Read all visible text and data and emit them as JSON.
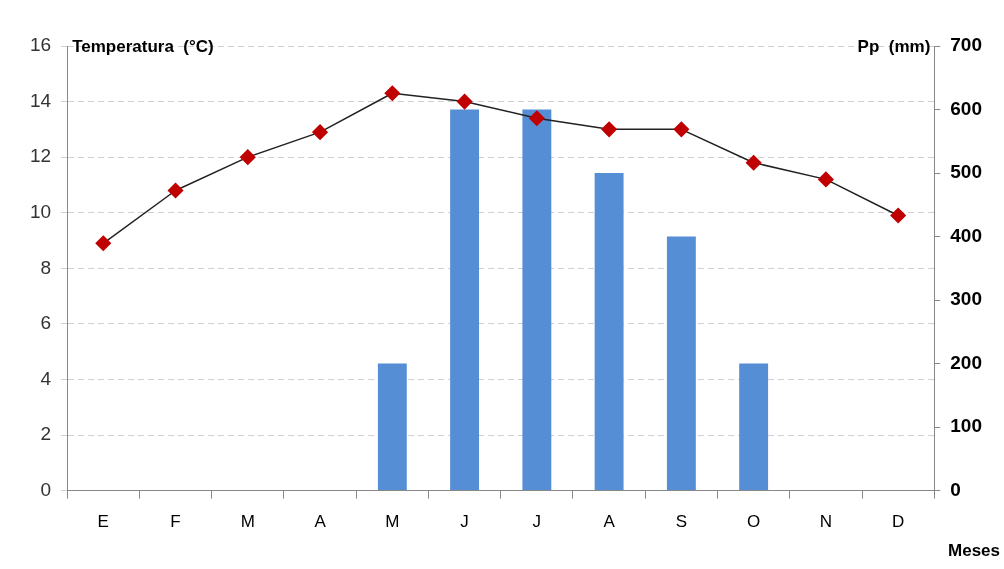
{
  "chart_data": {
    "type": "bar",
    "ylabel": "Temperatura  (°C)",
    "y2label": "Pp  (mm)",
    "xlabel": "Meses",
    "categories": [
      "E",
      "F",
      "M",
      "A",
      "M",
      "J",
      "J",
      "A",
      "S",
      "O",
      "N",
      "D"
    ],
    "series": [
      {
        "axis": "y2",
        "color": "#558ed5",
        "values": [
          0,
          0,
          0,
          0,
          200,
          600,
          600,
          500,
          400,
          200,
          0,
          0
        ]
      },
      {
        "type": "line",
        "axis": "y",
        "color": "#c00000",
        "marker": "diamond",
        "line_style": "solid",
        "values": [
          8.9,
          10.8,
          12.0,
          12.9,
          14.3,
          14.0,
          13.4,
          13.0,
          13.0,
          11.8,
          11.2,
          9.9
        ]
      }
    ],
    "ylim": [
      0,
      16
    ],
    "yticks": [
      0,
      2,
      4,
      6,
      8,
      10,
      12,
      14,
      16
    ],
    "y2lim": [
      0,
      700
    ],
    "y2ticks": [
      0,
      100,
      200,
      300,
      400,
      500,
      600,
      700
    ],
    "grid": "y",
    "legend": false
  }
}
